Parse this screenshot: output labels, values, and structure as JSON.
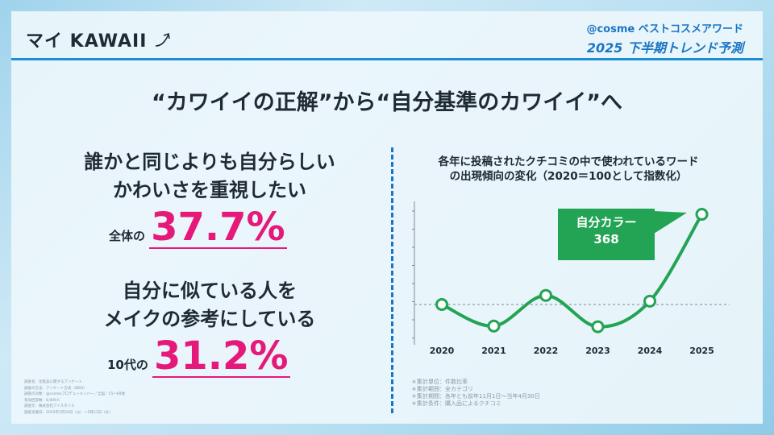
{
  "header": {
    "section_title": "マイ KAWAII",
    "arrow_icon": "arrow-up-right-icon",
    "brand_line1": "@cosme ベストコスメアワード",
    "brand_line2": "2025 下半期トレンド予測"
  },
  "headline": "“カワイイの正解”から“自分基準のカワイイ”へ",
  "stats": [
    {
      "line1": "誰かと同じよりも自分らしい",
      "line2": "かわいさを重視したい",
      "prefix": "全体の",
      "value": "37.7%"
    },
    {
      "line1": "自分に似ている人を",
      "line2": "メイクの参考にしている",
      "prefix": "10代の",
      "value": "31.2%"
    }
  ],
  "survey_notes": [
    "調査名：化粧品に関するアンケート",
    "調査の方法：アンケート方式（WEB）",
    "調査の対象：@cosmeプロデューメンバー／全国／15～69歳",
    "有効回答数：8,909人",
    "調査元：株式会社アイスタイル",
    "調査実施日：2025年5月20日（火）～5月21日（水）"
  ],
  "chart_data": {
    "type": "line",
    "title_line1": "各年に投稿されたクチコミの中で使われているワード",
    "title_line2": "の出現傾向の変化（2020＝100として指数化）",
    "categories": [
      "2020",
      "2021",
      "2022",
      "2023",
      "2024",
      "2025"
    ],
    "series": [
      {
        "values": [
          100,
          36,
          127,
          34,
          110,
          368
        ]
      }
    ],
    "baseline": 100,
    "ylim": [
      0,
      400
    ],
    "color": "#23a354",
    "callout": {
      "label": "自分カラー",
      "value": "368"
    }
  },
  "chart_notes": [
    "＊集計単位：件数比率",
    "＊集計範囲：全カテゴリ",
    "＊集計期間：各年とも前年11月1日～当年4月30日",
    "＊集計条件：購入品によるクチコミ"
  ],
  "colors": {
    "accent_blue": "#1a75c4",
    "highlight_pink": "#e5197a",
    "chart_green": "#23a354"
  }
}
